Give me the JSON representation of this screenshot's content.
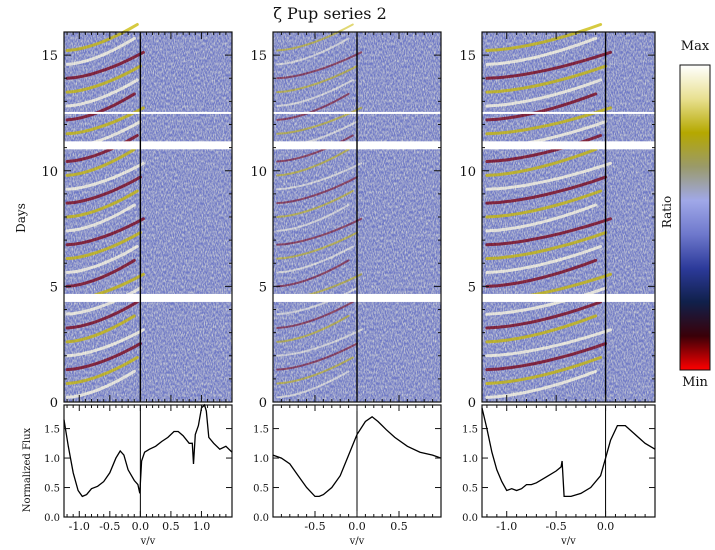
{
  "chart_data": [
    {
      "type": "heatmap",
      "title": "ζ Pup series 2",
      "ylabel": "Days",
      "ylim": [
        0,
        16
      ],
      "yticks": [
        "0",
        "5",
        "10",
        "15"
      ],
      "gaps_days": [
        4.5,
        11.1,
        12.5
      ],
      "colorbar": {
        "label": "Ratio",
        "max_label": "Max",
        "min_label": "Min",
        "colors": [
          "#ff0000",
          "#3a0008",
          "#10204a",
          "#2c3a9a",
          "#6e78cc",
          "#a0a8e8",
          "#9a9a6a",
          "#b5a800",
          "#e8e090",
          "#ffffff"
        ]
      }
    },
    {
      "type": "line",
      "ylabel": "Normalized Flux",
      "xlabel": "v/v",
      "ylim": [
        0,
        1.9
      ],
      "yticks": [
        "0.0",
        "0.5",
        "1.0",
        "1.5"
      ],
      "panels": [
        {
          "name": "left",
          "xlim": [
            -1.25,
            1.5
          ],
          "xticks": [
            "-1.0",
            "-0.5",
            "0.0",
            "0.5",
            "1.0"
          ],
          "x": [
            -1.25,
            -1.18,
            -1.1,
            -1.02,
            -0.95,
            -0.88,
            -0.8,
            -0.7,
            -0.6,
            -0.5,
            -0.4,
            -0.33,
            -0.27,
            -0.2,
            -0.1,
            -0.04,
            -0.01,
            0.02,
            0.07,
            0.15,
            0.25,
            0.35,
            0.45,
            0.55,
            0.62,
            0.7,
            0.8,
            0.85,
            0.87,
            0.9,
            0.95,
            1.0,
            1.05,
            1.08,
            1.12,
            1.2,
            1.3,
            1.4,
            1.5
          ],
          "y": [
            1.65,
            1.2,
            0.75,
            0.45,
            0.35,
            0.38,
            0.48,
            0.52,
            0.6,
            0.75,
            1.0,
            1.12,
            1.05,
            0.8,
            0.62,
            0.55,
            0.4,
            0.95,
            1.1,
            1.15,
            1.2,
            1.28,
            1.35,
            1.45,
            1.45,
            1.38,
            1.25,
            1.25,
            0.9,
            1.4,
            1.55,
            1.85,
            1.9,
            1.8,
            1.35,
            1.25,
            1.15,
            1.2,
            1.1
          ]
        },
        {
          "name": "middle",
          "xlim": [
            -1.0,
            1.0
          ],
          "xticks": [
            "-0.5",
            "0.0",
            "0.5"
          ],
          "x": [
            -1.0,
            -0.9,
            -0.8,
            -0.7,
            -0.6,
            -0.5,
            -0.45,
            -0.4,
            -0.3,
            -0.2,
            -0.1,
            0.0,
            0.1,
            0.18,
            0.25,
            0.35,
            0.45,
            0.6,
            0.75,
            0.9,
            1.0
          ],
          "y": [
            1.05,
            1.0,
            0.9,
            0.7,
            0.5,
            0.35,
            0.35,
            0.38,
            0.5,
            0.7,
            1.05,
            1.4,
            1.62,
            1.7,
            1.62,
            1.48,
            1.35,
            1.2,
            1.1,
            1.05,
            1.0
          ]
        },
        {
          "name": "right",
          "xlim": [
            -1.25,
            0.5
          ],
          "xticks": [
            "-1.0",
            "-0.5",
            "0.0"
          ],
          "x": [
            -1.25,
            -1.2,
            -1.15,
            -1.1,
            -1.05,
            -1.0,
            -0.95,
            -0.9,
            -0.85,
            -0.8,
            -0.75,
            -0.7,
            -0.6,
            -0.5,
            -0.45,
            -0.44,
            -0.42,
            -0.35,
            -0.25,
            -0.15,
            -0.05,
            0.0,
            0.05,
            0.12,
            0.2,
            0.3,
            0.4,
            0.5
          ],
          "y": [
            1.85,
            1.5,
            1.1,
            0.8,
            0.6,
            0.45,
            0.48,
            0.45,
            0.48,
            0.55,
            0.55,
            0.58,
            0.68,
            0.78,
            0.85,
            0.95,
            0.35,
            0.35,
            0.4,
            0.5,
            0.7,
            1.0,
            1.3,
            1.55,
            1.55,
            1.4,
            1.25,
            1.15
          ]
        }
      ]
    }
  ]
}
